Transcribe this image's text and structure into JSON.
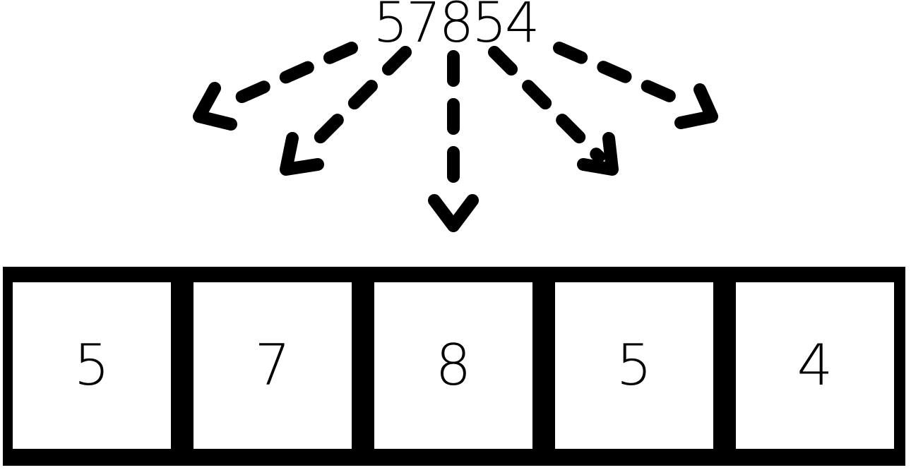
{
  "number": "57854",
  "digits": [
    "5",
    "7",
    "8",
    "5",
    "4"
  ]
}
